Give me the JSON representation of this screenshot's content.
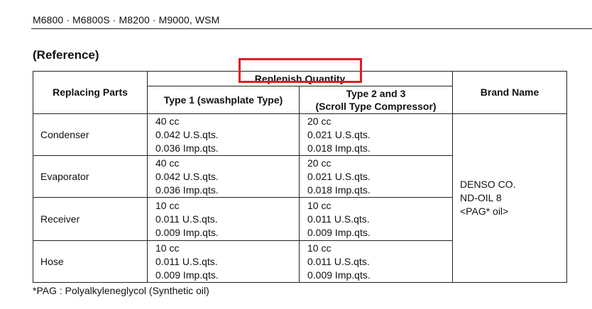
{
  "header": {
    "models": "M6800 · M6800S · M8200 · M9000, WSM"
  },
  "section_title": "(Reference)",
  "table": {
    "col_replacing_parts": "Replacing Parts",
    "col_replenish_quantity": "Replenish Quantity",
    "col_type1": "Type 1 (swashplate Type)",
    "col_type2_line1": "Type 2 and 3",
    "col_type2_line2": "(Scroll Type Compressor)",
    "col_brand_name": "Brand Name",
    "rows": [
      {
        "part": "Condenser",
        "type1": [
          "40 cc",
          "0.042 U.S.qts.",
          "0.036 Imp.qts."
        ],
        "type2": [
          "20 cc",
          "0.021 U.S.qts.",
          "0.018 Imp.qts."
        ]
      },
      {
        "part": "Evaporator",
        "type1": [
          "40 cc",
          "0.042 U.S.qts.",
          "0.036 Imp.qts."
        ],
        "type2": [
          "20 cc",
          "0.021 U.S.qts.",
          "0.018 Imp.qts."
        ]
      },
      {
        "part": "Receiver",
        "type1": [
          "10 cc",
          "0.011 U.S.qts.",
          "0.009 Imp.qts."
        ],
        "type2": [
          "10 cc",
          "0.011 U.S.qts.",
          "0.009 Imp.qts."
        ]
      },
      {
        "part": "Hose",
        "type1": [
          "10 cc",
          "0.011 U.S.qts.",
          "0.009 Imp.qts."
        ],
        "type2": [
          "10 cc",
          "0.011 U.S.qts.",
          "0.009 Imp.qts."
        ]
      }
    ],
    "brand": [
      "DENSO CO.",
      "ND-OIL 8",
      "<PAG* oil>"
    ]
  },
  "footnote": "*PAG : Polyalkyleneglycol (Synthetic oil)",
  "colors": {
    "highlight": "#e01b24",
    "text": "#111111",
    "rule": "#222222"
  }
}
